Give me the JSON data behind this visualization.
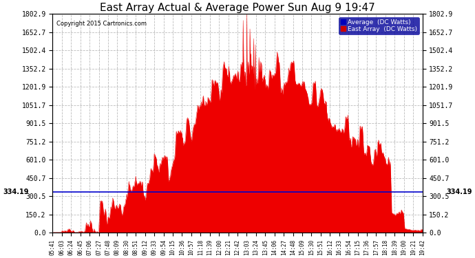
{
  "title": "East Array Actual & Average Power Sun Aug 9 19:47",
  "copyright": "Copyright 2015 Cartronics.com",
  "legend_avg": "Average  (DC Watts)",
  "legend_east": "East Array  (DC Watts)",
  "legend_avg_color": "#0000bb",
  "legend_east_color": "#cc0000",
  "avg_line_value": 334.19,
  "avg_line_color": "#0000cc",
  "ymin": 0.0,
  "ymax": 1802.9,
  "yticks": [
    0.0,
    150.2,
    300.5,
    450.7,
    601.0,
    751.2,
    901.5,
    1051.7,
    1201.9,
    1352.2,
    1502.4,
    1652.7,
    1802.9
  ],
  "fill_color": "#ee0000",
  "background_color": "#ffffff",
  "plot_bg_color": "#ffffff",
  "grid_color": "#aaaaaa",
  "grid_style": "--",
  "title_fontsize": 11,
  "x_times": [
    "05:41",
    "06:03",
    "06:24",
    "06:45",
    "07:06",
    "07:27",
    "07:48",
    "08:09",
    "08:30",
    "08:51",
    "09:12",
    "09:33",
    "09:54",
    "10:15",
    "10:36",
    "10:57",
    "11:18",
    "11:39",
    "12:00",
    "12:21",
    "12:42",
    "13:03",
    "13:24",
    "13:45",
    "14:06",
    "14:27",
    "14:48",
    "15:09",
    "15:30",
    "15:51",
    "16:12",
    "16:33",
    "16:54",
    "17:15",
    "17:36",
    "17:57",
    "18:18",
    "18:39",
    "19:00",
    "19:21",
    "19:42"
  ],
  "n_points": 820
}
